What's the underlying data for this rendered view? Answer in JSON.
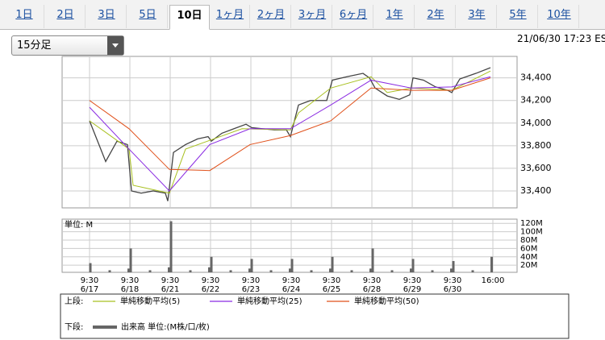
{
  "tabs": [
    "1日",
    "2日",
    "3日",
    "5日",
    "10日",
    "1ヶ月",
    "2ヶ月",
    "3ヶ月",
    "6ヶ月",
    "1年",
    "2年",
    "3年",
    "5年",
    "10年"
  ],
  "active_tab": 4,
  "interval_select": "15分足",
  "timestamp": "21/06/30 17:23 ES",
  "legend": {
    "upper_label": "上段:",
    "lower_label": "下段:"
  },
  "chart_data": [
    {
      "type": "line",
      "xlim": [
        -0.68,
        10.6
      ],
      "xticks": [
        0,
        1,
        2,
        3,
        4,
        5,
        6,
        7,
        8,
        9,
        10
      ],
      "ylim": [
        33250,
        34590
      ],
      "yticks": [
        {
          "value": 33400,
          "label": "33,400"
        },
        {
          "value": 33600,
          "label": "33,600"
        },
        {
          "value": 33800,
          "label": "33,800"
        },
        {
          "value": 34000,
          "label": "34,000"
        },
        {
          "value": 34200,
          "label": "34,200"
        },
        {
          "value": 34400,
          "label": "34,400"
        }
      ],
      "grid": true,
      "series": [
        {
          "color": "#444444",
          "x": [
            0,
            0.4,
            0.68,
            0.94,
            1.04,
            1.28,
            1.58,
            1.88,
            1.94,
            2.08,
            2.38,
            2.68,
            2.94,
            3.02,
            3.28,
            3.58,
            3.88,
            4.02,
            4.28,
            4.58,
            4.88,
            4.98,
            5.18,
            5.48,
            5.88,
            6.02,
            6.38,
            6.78,
            6.94,
            7.08,
            7.38,
            7.68,
            7.94,
            8.02,
            8.28,
            8.58,
            8.88,
            8.98,
            9.18,
            9.58,
            9.94
          ],
          "values": [
            34020,
            33660,
            33840,
            33810,
            33400,
            33380,
            33400,
            33380,
            33310,
            33740,
            33810,
            33860,
            33880,
            33840,
            33910,
            33950,
            33990,
            33960,
            33950,
            33940,
            33940,
            33880,
            34160,
            34200,
            34200,
            34380,
            34410,
            34440,
            34400,
            34310,
            34240,
            34210,
            34250,
            34400,
            34380,
            34320,
            34290,
            34270,
            34390,
            34440,
            34490
          ]
        },
        {
          "name": "単純移動平均(5)",
          "color": "#a8c020",
          "x": [
            0,
            0.98,
            1.08,
            1.98,
            2.38,
            3.78,
            4.98,
            5.18,
            5.98,
            6.98,
            7.38,
            7.98,
            8.98,
            9.94
          ],
          "values": [
            34020,
            33770,
            33450,
            33380,
            33770,
            33950,
            33940,
            34090,
            34310,
            34410,
            34270,
            34310,
            34290,
            34460
          ]
        },
        {
          "name": "単純移動平均(25)",
          "color": "#8a2be2",
          "x": [
            0,
            0.98,
            1.98,
            2.98,
            3.98,
            4.98,
            5.98,
            6.98,
            7.98,
            8.98,
            9.94
          ],
          "values": [
            34140,
            33770,
            33400,
            33810,
            33950,
            33950,
            34160,
            34380,
            34310,
            34320,
            34410
          ]
        },
        {
          "name": "単純移動平均(50)",
          "color": "#e0501a",
          "x": [
            0,
            0.98,
            1.98,
            2.98,
            3.98,
            4.98,
            5.98,
            6.98,
            7.98,
            8.98,
            9.94
          ],
          "values": [
            34200,
            33950,
            33590,
            33580,
            33810,
            33890,
            34020,
            34310,
            34290,
            34290,
            34400
          ]
        }
      ]
    },
    {
      "type": "bar",
      "ylabel": "単位: M",
      "xlim": [
        -0.68,
        10.6
      ],
      "xticks": [
        {
          "value": 0,
          "label": "9:30 6/17"
        },
        {
          "value": 1,
          "label": "9:30 6/18"
        },
        {
          "value": 2,
          "label": "9:30 6/21"
        },
        {
          "value": 3,
          "label": "9:30 6/22"
        },
        {
          "value": 4,
          "label": "9:30 6/23"
        },
        {
          "value": 5,
          "label": "9:30 6/24"
        },
        {
          "value": 6,
          "label": "9:30 6/25"
        },
        {
          "value": 7,
          "label": "9:30 6/28"
        },
        {
          "value": 8,
          "label": "9:30 6/29"
        },
        {
          "value": 9,
          "label": "9:30 6/30"
        },
        {
          "value": 10,
          "label": "16:00"
        }
      ],
      "ylim": [
        3,
        130
      ],
      "yticks": [
        {
          "value": 20,
          "label": "20M"
        },
        {
          "value": 40,
          "label": "40M"
        },
        {
          "value": 60,
          "label": "60M"
        },
        {
          "value": 80,
          "label": "80M"
        },
        {
          "value": 100,
          "label": "100M"
        },
        {
          "value": 120,
          "label": "120M"
        }
      ],
      "grid": true,
      "series": [
        {
          "name": "出来高 単位:(M株/口/枚)",
          "color": "#666666",
          "x": [
            0.02,
            0.5,
            0.97,
            1.02,
            1.5,
            1.97,
            2.02,
            2.5,
            2.97,
            3.02,
            3.5,
            3.97,
            4.02,
            4.5,
            4.97,
            5.02,
            5.5,
            5.97,
            6.02,
            6.5,
            6.97,
            7.02,
            7.5,
            7.97,
            8.02,
            8.5,
            8.97,
            9.02,
            9.5,
            9.97
          ],
          "values": [
            25,
            8,
            12,
            60,
            8,
            15,
            125,
            8,
            15,
            40,
            8,
            12,
            35,
            8,
            12,
            35,
            8,
            12,
            40,
            8,
            12,
            60,
            8,
            12,
            35,
            8,
            12,
            30,
            8,
            40
          ]
        }
      ]
    }
  ]
}
